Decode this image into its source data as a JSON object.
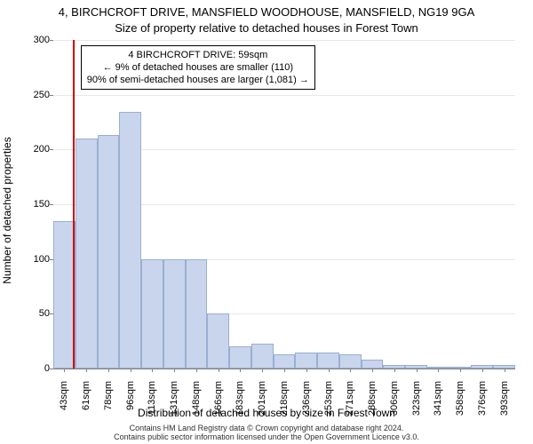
{
  "chart": {
    "type": "histogram",
    "title_main": "4, BIRCHCROFT DRIVE, MANSFIELD WOODHOUSE, MANSFIELD, NG19 9GA",
    "title_sub": "Size of property relative to detached houses in Forest Town",
    "title_fontsize": 13,
    "x_axis_label": "Distribution of detached houses by size in Forest Town",
    "y_axis_label": "Number of detached properties",
    "label_fontsize": 12,
    "tick_fontsize": 11,
    "background_color": "#ffffff",
    "grid_color": "#e8e8e8",
    "axis_color": "#808080",
    "bar_fill": "#c9d5ec",
    "bar_border": "#9aaed4",
    "marker_color": "#d40000",
    "text_color": "#000000",
    "y_ticks": [
      0,
      50,
      100,
      150,
      200,
      250,
      300
    ],
    "ylim": [
      0,
      300
    ],
    "x_categories": [
      "43sqm",
      "61sqm",
      "78sqm",
      "96sqm",
      "113sqm",
      "131sqm",
      "148sqm",
      "166sqm",
      "183sqm",
      "201sqm",
      "218sqm",
      "236sqm",
      "253sqm",
      "271sqm",
      "288sqm",
      "306sqm",
      "323sqm",
      "341sqm",
      "358sqm",
      "376sqm",
      "393sqm"
    ],
    "bar_values": [
      135,
      210,
      213,
      234,
      100,
      100,
      100,
      50,
      20,
      23,
      13,
      15,
      15,
      13,
      8,
      3,
      3,
      2,
      0,
      3,
      3
    ],
    "marker_index_fractional": 0.92,
    "annotation": {
      "line1": "4 BIRCHCROFT DRIVE: 59sqm",
      "line2": "← 9% of detached houses are smaller (110)",
      "line3": "90% of semi-detached houses are larger (1,081) →",
      "fontsize": 11,
      "border_color": "#000000",
      "bg_color": "#ffffff"
    },
    "footnote_line1": "Contains HM Land Registry data © Crown copyright and database right 2024.",
    "footnote_line2": "Contains public sector information licensed under the Open Government Licence v3.0.",
    "footnote_fontsize": 9
  }
}
